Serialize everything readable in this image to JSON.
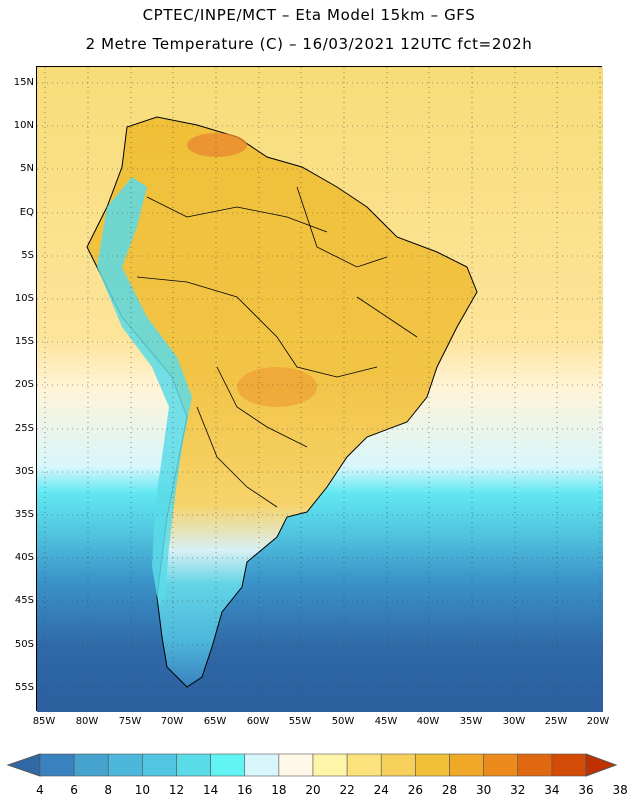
{
  "title_line1": "CPTEC/INPE/MCT –  Eta Model 15km – GFS",
  "title_line2": "2 Metre Temperature (C) – 16/03/2021 12UTC fct=202h",
  "lat_labels": [
    "15N",
    "10N",
    "5N",
    "EQ",
    "5S",
    "10S",
    "15S",
    "20S",
    "25S",
    "30S",
    "35S",
    "40S",
    "45S",
    "50S",
    "55S"
  ],
  "lon_labels": [
    "85W",
    "80W",
    "75W",
    "70W",
    "65W",
    "60W",
    "55W",
    "50W",
    "45W",
    "40W",
    "35W",
    "30W",
    "25W",
    "20W"
  ],
  "colorbar": {
    "labels": [
      "4",
      "6",
      "8",
      "10",
      "12",
      "14",
      "16",
      "18",
      "20",
      "22",
      "24",
      "26",
      "28",
      "30",
      "32",
      "34",
      "36",
      "38"
    ],
    "colors": [
      "#2f69a8",
      "#3a82bf",
      "#46a2cf",
      "#4db6db",
      "#52c6e0",
      "#5adbe8",
      "#62f4f4",
      "#d8f6fc",
      "#fff8e6",
      "#fff5a8",
      "#fce27a",
      "#f6d05a",
      "#f0c038",
      "#f0a828",
      "#ec8a1c",
      "#e06810",
      "#d24c08",
      "#c03000"
    ]
  },
  "colors": {
    "land_warm": "#f6d05a",
    "ocean_warm": "#fce27a",
    "ocean_cold": "#2f69a8"
  }
}
